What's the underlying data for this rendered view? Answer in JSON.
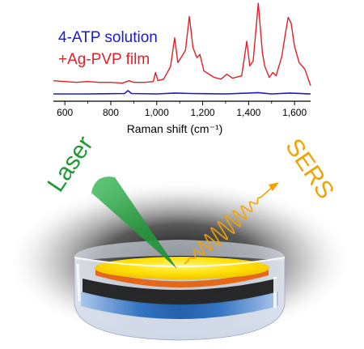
{
  "chart_data": {
    "type": "line",
    "xlabel": "Raman shift (cm⁻¹)",
    "xlim": [
      550,
      1670
    ],
    "ylim": [
      0,
      100
    ],
    "x_ticks": [
      600,
      800,
      1000,
      1200,
      1400,
      1600
    ],
    "x_tick_labels": [
      "600",
      "800",
      "1,000",
      "1,200",
      "1,400",
      "1,600"
    ],
    "grid": false,
    "legend_position": "top-left",
    "series": [
      {
        "name": "4-ATP solution",
        "color": "#1a1acc",
        "points": [
          [
            550,
            2
          ],
          [
            700,
            2
          ],
          [
            860,
            2.5
          ],
          [
            875,
            6
          ],
          [
            890,
            2.5
          ],
          [
            1000,
            2
          ],
          [
            1080,
            3
          ],
          [
            1150,
            2.5
          ],
          [
            1300,
            2
          ],
          [
            1400,
            3
          ],
          [
            1440,
            3.5
          ],
          [
            1500,
            2
          ],
          [
            1580,
            3
          ],
          [
            1670,
            2
          ]
        ]
      },
      {
        "name": "+Ag-PVP film",
        "color": "#e11f26",
        "points": [
          [
            550,
            18
          ],
          [
            600,
            17
          ],
          [
            650,
            16
          ],
          [
            700,
            17
          ],
          [
            750,
            16
          ],
          [
            800,
            16
          ],
          [
            850,
            15
          ],
          [
            880,
            18
          ],
          [
            900,
            16
          ],
          [
            950,
            16
          ],
          [
            985,
            17
          ],
          [
            995,
            28
          ],
          [
            1005,
            18
          ],
          [
            1030,
            20
          ],
          [
            1060,
            35
          ],
          [
            1078,
            70
          ],
          [
            1092,
            40
          ],
          [
            1110,
            48
          ],
          [
            1125,
            55
          ],
          [
            1142,
            96
          ],
          [
            1158,
            58
          ],
          [
            1175,
            46
          ],
          [
            1188,
            50
          ],
          [
            1205,
            30
          ],
          [
            1250,
            22
          ],
          [
            1280,
            20
          ],
          [
            1305,
            26
          ],
          [
            1330,
            21
          ],
          [
            1370,
            24
          ],
          [
            1392,
            66
          ],
          [
            1405,
            36
          ],
          [
            1420,
            42
          ],
          [
            1442,
            112
          ],
          [
            1460,
            52
          ],
          [
            1470,
            36
          ],
          [
            1490,
            22
          ],
          [
            1505,
            28
          ],
          [
            1520,
            24
          ],
          [
            1545,
            48
          ],
          [
            1560,
            75
          ],
          [
            1572,
            95
          ],
          [
            1585,
            88
          ],
          [
            1600,
            60
          ],
          [
            1620,
            40
          ],
          [
            1645,
            32
          ],
          [
            1670,
            12
          ]
        ]
      }
    ]
  },
  "scene": {
    "laser_label": "Laser",
    "sers_label": "SERS",
    "laser_color": "#25a33a",
    "sers_color": "#f5a200",
    "film_color": "#ffe000",
    "substrate_edge_color": "#e5681a"
  }
}
